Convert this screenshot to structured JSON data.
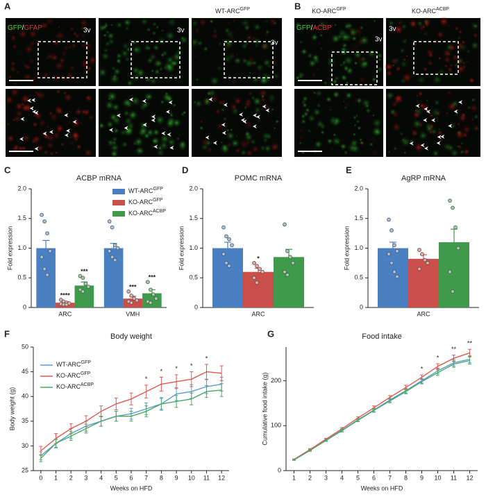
{
  "panels": {
    "A": {
      "label": "A",
      "title": "WT-ARC",
      "title_superscript": "GFP",
      "stain_green": "GFP",
      "stain_separator": "/",
      "stain_red": "GFAP",
      "ventricle": "3v"
    },
    "B": {
      "label": "B",
      "titles": [
        {
          "text": "KO-ARC",
          "superscript": "GFP"
        },
        {
          "text": "KO-ARC",
          "superscript": "ACBP"
        }
      ],
      "stain_green": "GFP",
      "stain_separator": "/",
      "stain_red": "ACBP",
      "ventricle": "3v"
    }
  },
  "chart_data": [
    {
      "panel": "C",
      "type": "bar",
      "title": "ACBP mRNA",
      "y_label": "Fold expression",
      "categories": [
        "ARC",
        "VMH"
      ],
      "ylim": [
        0,
        2
      ],
      "yticks": [
        0,
        0.5,
        {
          "value": 1,
          "label": "1.0"
        },
        1.5,
        {
          "value": 2,
          "label": "2.0"
        }
      ],
      "legend": "upper right",
      "series": [
        {
          "name": "WT-ARC",
          "name_superscript": "GFP",
          "color": "#4a7fc1",
          "values": [
            1.0,
            1.0
          ],
          "errors": [
            0.13,
            0.08
          ],
          "points": [
            [
              1.56,
              1.45,
              1.25,
              0.95,
              0.85,
              0.65,
              0.55
            ],
            [
              1.45,
              1.35,
              1.05,
              1.0,
              0.95,
              0.85,
              0.8
            ]
          ]
        },
        {
          "name": "KO-ARC",
          "name_superscript": "GFP",
          "color": "#c9504a",
          "values": [
            0.08,
            0.15
          ],
          "errors": [
            0.02,
            0.04
          ],
          "points": [
            [
              0.13,
              0.1,
              0.08,
              0.07,
              0.06,
              0.05,
              0.05
            ],
            [
              0.27,
              0.2,
              0.15,
              0.12,
              0.1,
              0.08
            ]
          ],
          "annotations": [
            "****",
            "***"
          ]
        },
        {
          "name": "KO-ARC",
          "name_superscript": "ACBP",
          "color": "#3f9a4c",
          "values": [
            0.37,
            0.24
          ],
          "errors": [
            0.06,
            0.06
          ],
          "points": [
            [
              0.53,
              0.5,
              0.4,
              0.35,
              0.3,
              0.27
            ],
            [
              0.43,
              0.3,
              0.22,
              0.15,
              0.1,
              0.08
            ]
          ],
          "annotations": [
            "***",
            "***"
          ]
        }
      ]
    },
    {
      "panel": "D",
      "type": "bar",
      "title": "POMC mRNA",
      "y_label": "Fold expression",
      "categories": [
        "ARC"
      ],
      "ylim": [
        0,
        2
      ],
      "yticks": [
        0,
        0.5,
        {
          "value": 1,
          "label": "1.0"
        },
        1.5,
        {
          "value": 2,
          "label": "2.0"
        }
      ],
      "series": [
        {
          "color": "#4a7fc1",
          "values": [
            1.0
          ],
          "errors": [
            0.1
          ],
          "points": [
            [
              1.35,
              1.2,
              1.15,
              1.05,
              0.9,
              0.75,
              0.7
            ]
          ]
        },
        {
          "color": "#c9504a",
          "values": [
            0.6
          ],
          "errors": [
            0.06
          ],
          "points": [
            [
              0.75,
              0.7,
              0.65,
              0.6,
              0.5,
              0.42
            ]
          ],
          "annotations": [
            "*"
          ]
        },
        {
          "color": "#3f9a4c",
          "values": [
            0.85
          ],
          "errors": [
            0.13
          ],
          "points": [
            [
              1.4,
              0.95,
              0.85,
              0.75,
              0.6,
              0.55
            ]
          ]
        }
      ]
    },
    {
      "panel": "E",
      "type": "bar",
      "title": "AgRP mRNA",
      "y_label": "Fold expression",
      "categories": [
        "ARC"
      ],
      "ylim": [
        0,
        2
      ],
      "yticks": [
        0,
        0.5,
        {
          "value": 1,
          "label": "1.0"
        },
        1.5,
        {
          "value": 2,
          "label": "2.0"
        }
      ],
      "series": [
        {
          "color": "#4a7fc1",
          "values": [
            1.0
          ],
          "errors": [
            0.1
          ],
          "points": [
            [
              1.48,
              1.3,
              1.05,
              0.95,
              0.9,
              0.75,
              0.6,
              0.52
            ]
          ]
        },
        {
          "color": "#c9504a",
          "values": [
            0.82
          ],
          "errors": [
            0.07
          ],
          "points": [
            [
              0.97,
              0.9,
              0.8,
              0.75,
              0.65
            ]
          ]
        },
        {
          "color": "#3f9a4c",
          "values": [
            1.1
          ],
          "errors": [
            0.22
          ],
          "points": [
            [
              1.8,
              1.68,
              1.35,
              1.0,
              0.6,
              0.27
            ]
          ]
        }
      ]
    },
    {
      "panel": "F",
      "type": "line",
      "title": "Body weight",
      "x_label": "Weeks on HFD",
      "y_label": "Body weight (g)",
      "x": [
        0,
        1,
        2,
        3,
        4,
        5,
        6,
        7,
        8,
        9,
        10,
        11,
        12
      ],
      "xlim": [
        -0.5,
        12.5
      ],
      "xticks": [
        0,
        1,
        2,
        3,
        4,
        5,
        6,
        7,
        8,
        9,
        10,
        11,
        12
      ],
      "ylim": [
        25,
        50
      ],
      "yticks": [
        25,
        30,
        35,
        40,
        45,
        50
      ],
      "legend": "upper left",
      "series": [
        {
          "name": "WT-ARC",
          "name_superscript": "GFP",
          "color": "#5b9bd5",
          "values": [
            28,
            30.5,
            32.5,
            34,
            35,
            36,
            36.5,
            37.5,
            38.5,
            40.5,
            41,
            42,
            42.5
          ],
          "errors": [
            0.8,
            0.9,
            1,
            1,
            1,
            1,
            1.1,
            1.2,
            1.3,
            1.3,
            1.4,
            1.4,
            1.4
          ]
        },
        {
          "name": "KO-ARC",
          "name_superscript": "GFP",
          "color": "#e0584f",
          "values": [
            29,
            31.5,
            33.5,
            35,
            37,
            38.5,
            39.5,
            41,
            42.5,
            43,
            43.5,
            45,
            44.7
          ],
          "errors": [
            0.9,
            1,
            1,
            1.1,
            1.1,
            1.2,
            1.2,
            1.3,
            1.4,
            1.4,
            1.5,
            1.5,
            1.5
          ]
        },
        {
          "name": "KO-ARC",
          "name_superscript": "ACBP",
          "color": "#4aa863",
          "values": [
            27.5,
            30.5,
            32,
            33.5,
            35,
            36,
            36,
            37,
            38.5,
            39,
            39.5,
            41,
            41.3
          ],
          "errors": [
            0.7,
            0.8,
            0.9,
            0.9,
            1,
            1,
            1,
            1.1,
            1.1,
            1.2,
            1.2,
            1.2,
            1.3
          ]
        }
      ],
      "annotations": [
        {
          "x": 7,
          "text": "*"
        },
        {
          "x": 8,
          "text": "*"
        },
        {
          "x": 9,
          "text": "*"
        },
        {
          "x": 10,
          "text": "*"
        },
        {
          "x": 11,
          "text": "*"
        }
      ]
    },
    {
      "panel": "G",
      "type": "line",
      "title": "Food intake",
      "x_label": "Weeks on HFD",
      "y_label": "Cumulative food intake (g)",
      "x": [
        1,
        2,
        3,
        4,
        5,
        6,
        7,
        8,
        9,
        10,
        11,
        12
      ],
      "xlim": [
        0.5,
        12.5
      ],
      "xticks": [
        1,
        2,
        3,
        4,
        5,
        6,
        7,
        8,
        9,
        10,
        11,
        12
      ],
      "ylim": [
        0,
        275
      ],
      "yticks": [
        0,
        100,
        200
      ],
      "series": [
        {
          "color": "#5b9bd5",
          "values": [
            24,
            45,
            68,
            90,
            113,
            135,
            157,
            178,
            200,
            222,
            240,
            248
          ],
          "errors": [
            1,
            2,
            2,
            3,
            3,
            4,
            4,
            5,
            5,
            6,
            7,
            8
          ]
        },
        {
          "color": "#e0584f",
          "values": [
            25,
            47,
            70,
            93,
            117,
            140,
            163,
            185,
            208,
            232,
            250,
            262
          ],
          "errors": [
            1,
            2,
            2,
            3,
            3,
            4,
            4,
            5,
            5,
            6,
            7,
            8
          ]
        },
        {
          "color": "#4aa863",
          "values": [
            24,
            45,
            67,
            89,
            112,
            134,
            155,
            176,
            198,
            218,
            237,
            245
          ],
          "errors": [
            1,
            2,
            2,
            3,
            3,
            4,
            4,
            5,
            5,
            6,
            7,
            8
          ]
        }
      ],
      "annotations": [
        {
          "x": 9,
          "text": "*"
        },
        {
          "x": 10,
          "text": "*"
        },
        {
          "x": 11,
          "text": "**"
        },
        {
          "x": 12,
          "text": "**"
        }
      ]
    }
  ]
}
